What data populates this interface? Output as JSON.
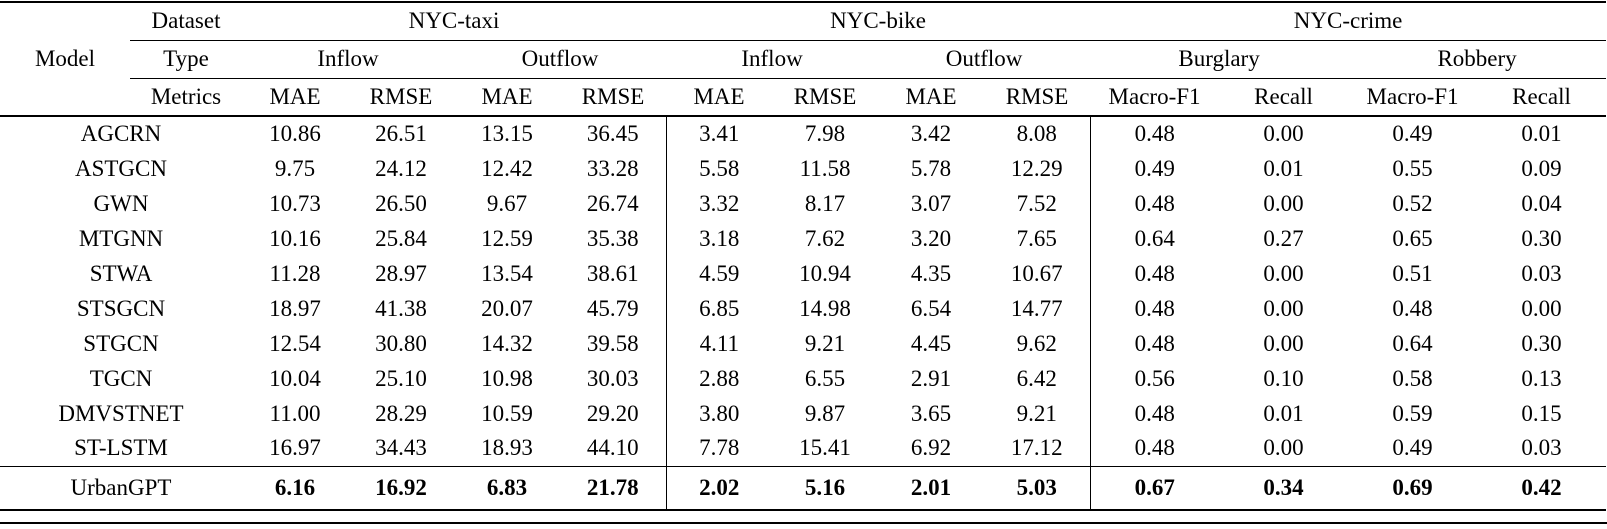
{
  "table": {
    "header": {
      "model_label": "Model",
      "row_labels": [
        "Dataset",
        "Type",
        "Metrics"
      ],
      "datasets": [
        {
          "name": "NYC-taxi",
          "types": [
            "Inflow",
            "Outflow"
          ],
          "metrics": [
            "MAE",
            "RMSE",
            "MAE",
            "RMSE"
          ]
        },
        {
          "name": "NYC-bike",
          "types": [
            "Inflow",
            "Outflow"
          ],
          "metrics": [
            "MAE",
            "RMSE",
            "MAE",
            "RMSE"
          ]
        },
        {
          "name": "NYC-crime",
          "types": [
            "Burglary",
            "Robbery"
          ],
          "metrics": [
            "Macro-F1",
            "Recall",
            "Macro-F1",
            "Recall"
          ]
        }
      ]
    },
    "rows": [
      {
        "model": "AGCRN",
        "bold": false,
        "values": [
          "10.86",
          "26.51",
          "13.15",
          "36.45",
          "3.41",
          "7.98",
          "3.42",
          "8.08",
          "0.48",
          "0.00",
          "0.49",
          "0.01"
        ]
      },
      {
        "model": "ASTGCN",
        "bold": false,
        "values": [
          "9.75",
          "24.12",
          "12.42",
          "33.28",
          "5.58",
          "11.58",
          "5.78",
          "12.29",
          "0.49",
          "0.01",
          "0.55",
          "0.09"
        ]
      },
      {
        "model": "GWN",
        "bold": false,
        "values": [
          "10.73",
          "26.50",
          "9.67",
          "26.74",
          "3.32",
          "8.17",
          "3.07",
          "7.52",
          "0.48",
          "0.00",
          "0.52",
          "0.04"
        ]
      },
      {
        "model": "MTGNN",
        "bold": false,
        "values": [
          "10.16",
          "25.84",
          "12.59",
          "35.38",
          "3.18",
          "7.62",
          "3.20",
          "7.65",
          "0.64",
          "0.27",
          "0.65",
          "0.30"
        ]
      },
      {
        "model": "STWA",
        "bold": false,
        "values": [
          "11.28",
          "28.97",
          "13.54",
          "38.61",
          "4.59",
          "10.94",
          "4.35",
          "10.67",
          "0.48",
          "0.00",
          "0.51",
          "0.03"
        ]
      },
      {
        "model": "STSGCN",
        "bold": false,
        "values": [
          "18.97",
          "41.38",
          "20.07",
          "45.79",
          "6.85",
          "14.98",
          "6.54",
          "14.77",
          "0.48",
          "0.00",
          "0.48",
          "0.00"
        ]
      },
      {
        "model": "STGCN",
        "bold": false,
        "values": [
          "12.54",
          "30.80",
          "14.32",
          "39.58",
          "4.11",
          "9.21",
          "4.45",
          "9.62",
          "0.48",
          "0.00",
          "0.64",
          "0.30"
        ]
      },
      {
        "model": "TGCN",
        "bold": false,
        "values": [
          "10.04",
          "25.10",
          "10.98",
          "30.03",
          "2.88",
          "6.55",
          "2.91",
          "6.42",
          "0.56",
          "0.10",
          "0.58",
          "0.13"
        ]
      },
      {
        "model": "DMVSTNET",
        "bold": false,
        "values": [
          "11.00",
          "28.29",
          "10.59",
          "29.20",
          "3.80",
          "9.87",
          "3.65",
          "9.21",
          "0.48",
          "0.01",
          "0.59",
          "0.15"
        ]
      },
      {
        "model": "ST-LSTM",
        "bold": false,
        "values": [
          "16.97",
          "34.43",
          "18.93",
          "44.10",
          "7.78",
          "15.41",
          "6.92",
          "17.12",
          "0.48",
          "0.00",
          "0.49",
          "0.03"
        ]
      },
      {
        "model": "UrbanGPT",
        "bold": true,
        "values": [
          "6.16",
          "16.92",
          "6.83",
          "21.78",
          "2.02",
          "5.16",
          "2.01",
          "5.03",
          "0.67",
          "0.34",
          "0.69",
          "0.42"
        ]
      }
    ]
  }
}
